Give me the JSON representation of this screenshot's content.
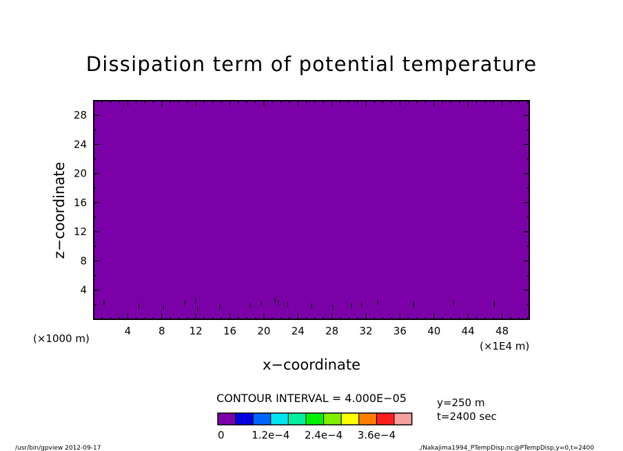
{
  "chart_data": {
    "type": "heatmap",
    "title": "Dissipation term of potential temperature",
    "xlabel": "x−coordinate",
    "ylabel": "z−coordinate",
    "x_units": "(×1E4 m)",
    "y_units": "(×1000 m)",
    "x_ticks": [
      4,
      8,
      12,
      16,
      20,
      24,
      28,
      32,
      36,
      40,
      44,
      48
    ],
    "y_ticks": [
      4,
      8,
      12,
      16,
      20,
      24,
      28
    ],
    "xlim": [
      0,
      51.2
    ],
    "ylim": [
      0,
      30
    ],
    "field_value": 0,
    "contour_interval_label": "CONTOUR INTERVAL = 4.000E−05",
    "colorbar": {
      "colors": [
        "#7b00a8",
        "#0000e0",
        "#0064ff",
        "#00e6f0",
        "#00f0a0",
        "#00f000",
        "#80f000",
        "#ffff00",
        "#ff8000",
        "#ff1e1e",
        "#f5a0a0"
      ],
      "tick_labels": [
        "0",
        "1.2e−4",
        "2.4e−4",
        "3.6e−4"
      ]
    },
    "info": [
      "y=250 m",
      "t=2400 sec"
    ],
    "footer_left": "/usr/bin/gpview  2012-09-17",
    "footer_right": "./Nakajima1994_PTempDisp.nc@PTempDisp,y=0,t=2400",
    "specks": [
      [
        1.2,
        2.3
      ],
      [
        5.3,
        1.8
      ],
      [
        8.2,
        1.6
      ],
      [
        10.7,
        2.2
      ],
      [
        12.0,
        2.6
      ],
      [
        12.2,
        1.4
      ],
      [
        14.8,
        1.7
      ],
      [
        18.4,
        1.9
      ],
      [
        19.7,
        2.1
      ],
      [
        21.3,
        2.6
      ],
      [
        21.7,
        2.3
      ],
      [
        22.8,
        2.0
      ],
      [
        25.6,
        1.8
      ],
      [
        28.1,
        1.6
      ],
      [
        30.3,
        1.9
      ],
      [
        31.5,
        2.0
      ],
      [
        33.4,
        2.3
      ],
      [
        37.6,
        2.0
      ],
      [
        42.3,
        2.2
      ],
      [
        47.1,
        2.1
      ]
    ]
  }
}
